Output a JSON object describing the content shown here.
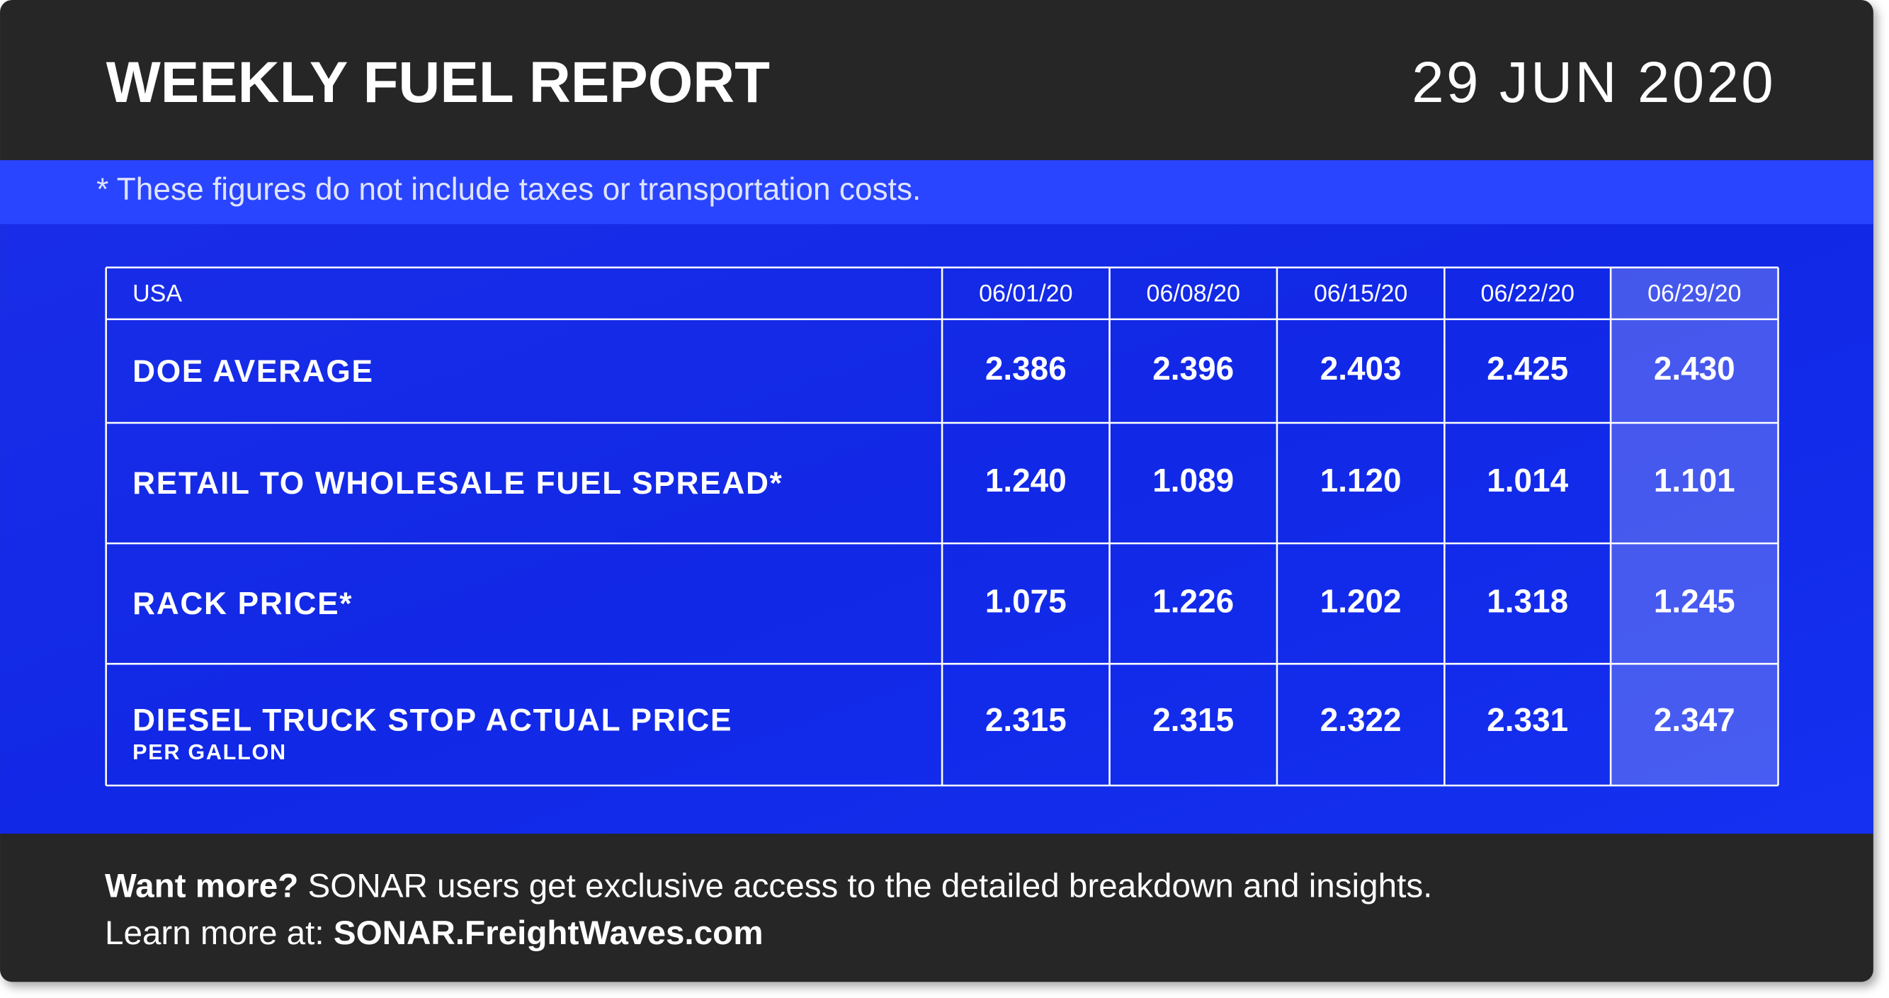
{
  "header": {
    "title": "WEEKLY FUEL REPORT",
    "date": "29 JUN 2020"
  },
  "note": "* These figures do not include taxes or transportation costs.",
  "table": {
    "columns": [
      "USA",
      "06/01/20",
      "06/08/20",
      "06/15/20",
      "06/22/20",
      "06/29/20"
    ],
    "rows": [
      {
        "label": "DOE AVERAGE",
        "values": [
          "2.386",
          "2.396",
          "2.403",
          "2.425",
          "2.430"
        ]
      },
      {
        "label": "RETAIL TO WHOLESALE FUEL SPREAD*",
        "values": [
          "1.240",
          "1.089",
          "1.120",
          "1.014",
          "1.101"
        ]
      },
      {
        "label": "RACK PRICE*",
        "values": [
          "1.075",
          "1.226",
          "1.202",
          "1.318",
          "1.245"
        ]
      },
      {
        "label": "DIESEL TRUCK STOP ACTUAL PRICE",
        "sublabel": "PER GALLON",
        "values": [
          "2.315",
          "2.315",
          "2.322",
          "2.331",
          "2.347"
        ]
      }
    ]
  },
  "footer": {
    "line1_bold": "Want more?",
    "line1": " SONAR users get exclusive access to the detailed breakdown and insights.",
    "line2": "Learn more at: ",
    "line2_bold": "SONAR.FreightWaves.com"
  }
}
